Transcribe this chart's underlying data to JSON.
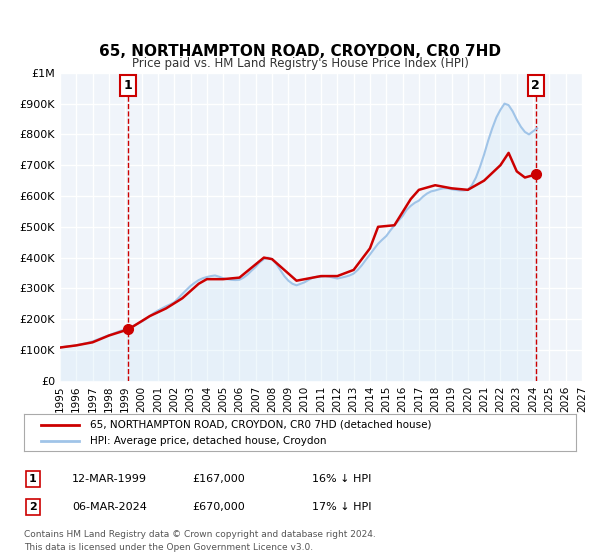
{
  "title": "65, NORTHAMPTON ROAD, CROYDON, CR0 7HD",
  "subtitle": "Price paid vs. HM Land Registry's House Price Index (HPI)",
  "xlabel": "",
  "ylabel": "",
  "xlim": [
    1995,
    2027
  ],
  "ylim": [
    0,
    1000000
  ],
  "yticks": [
    0,
    100000,
    200000,
    300000,
    400000,
    500000,
    600000,
    700000,
    800000,
    900000,
    1000000
  ],
  "ytick_labels": [
    "£0",
    "£100K",
    "£200K",
    "£300K",
    "£400K",
    "£500K",
    "£600K",
    "£700K",
    "£800K",
    "£900K",
    "£1M"
  ],
  "xticks": [
    1995,
    1996,
    1997,
    1998,
    1999,
    2000,
    2001,
    2002,
    2003,
    2004,
    2005,
    2006,
    2007,
    2008,
    2009,
    2010,
    2011,
    2012,
    2013,
    2014,
    2015,
    2016,
    2017,
    2018,
    2019,
    2020,
    2021,
    2022,
    2023,
    2024,
    2025,
    2026,
    2027
  ],
  "sale1_x": 1999.19,
  "sale1_y": 167000,
  "sale2_x": 2024.17,
  "sale2_y": 670000,
  "sale1_label": "1",
  "sale2_label": "2",
  "legend_line1": "65, NORTHAMPTON ROAD, CROYDON, CR0 7HD (detached house)",
  "legend_line2": "HPI: Average price, detached house, Croydon",
  "table_row1": [
    "1",
    "12-MAR-1999",
    "£167,000",
    "16% ↓ HPI"
  ],
  "table_row2": [
    "2",
    "06-MAR-2024",
    "£670,000",
    "17% ↓ HPI"
  ],
  "footer1": "Contains HM Land Registry data © Crown copyright and database right 2024.",
  "footer2": "This data is licensed under the Open Government Licence v3.0.",
  "price_line_color": "#cc0000",
  "hpi_line_color": "#a0c4e8",
  "hpi_fill_color": "#d0e8f8",
  "background_color": "#f0f4fa",
  "plot_bg_color": "#f0f4fa",
  "grid_color": "#ffffff",
  "vline_color": "#cc0000",
  "hpi_data_x": [
    1995.0,
    1995.25,
    1995.5,
    1995.75,
    1996.0,
    1996.25,
    1996.5,
    1996.75,
    1997.0,
    1997.25,
    1997.5,
    1997.75,
    1998.0,
    1998.25,
    1998.5,
    1998.75,
    1999.0,
    1999.25,
    1999.5,
    1999.75,
    2000.0,
    2000.25,
    2000.5,
    2000.75,
    2001.0,
    2001.25,
    2001.5,
    2001.75,
    2002.0,
    2002.25,
    2002.5,
    2002.75,
    2003.0,
    2003.25,
    2003.5,
    2003.75,
    2004.0,
    2004.25,
    2004.5,
    2004.75,
    2005.0,
    2005.25,
    2005.5,
    2005.75,
    2006.0,
    2006.25,
    2006.5,
    2006.75,
    2007.0,
    2007.25,
    2007.5,
    2007.75,
    2008.0,
    2008.25,
    2008.5,
    2008.75,
    2009.0,
    2009.25,
    2009.5,
    2009.75,
    2010.0,
    2010.25,
    2010.5,
    2010.75,
    2011.0,
    2011.25,
    2011.5,
    2011.75,
    2012.0,
    2012.25,
    2012.5,
    2012.75,
    2013.0,
    2013.25,
    2013.5,
    2013.75,
    2014.0,
    2014.25,
    2014.5,
    2014.75,
    2015.0,
    2015.25,
    2015.5,
    2015.75,
    2016.0,
    2016.25,
    2016.5,
    2016.75,
    2017.0,
    2017.25,
    2017.5,
    2017.75,
    2018.0,
    2018.25,
    2018.5,
    2018.75,
    2019.0,
    2019.25,
    2019.5,
    2019.75,
    2020.0,
    2020.25,
    2020.5,
    2020.75,
    2021.0,
    2021.25,
    2021.5,
    2021.75,
    2022.0,
    2022.25,
    2022.5,
    2022.75,
    2023.0,
    2023.25,
    2023.5,
    2023.75,
    2024.0,
    2024.25
  ],
  "hpi_data_y": [
    108000,
    110000,
    112000,
    113000,
    115000,
    118000,
    121000,
    124000,
    128000,
    133000,
    138000,
    143000,
    148000,
    153000,
    158000,
    163000,
    167000,
    172000,
    178000,
    185000,
    192000,
    200000,
    210000,
    220000,
    228000,
    235000,
    242000,
    248000,
    255000,
    268000,
    282000,
    295000,
    308000,
    318000,
    327000,
    333000,
    337000,
    340000,
    342000,
    338000,
    333000,
    330000,
    328000,
    327000,
    328000,
    335000,
    345000,
    358000,
    370000,
    385000,
    395000,
    400000,
    395000,
    380000,
    360000,
    340000,
    325000,
    315000,
    310000,
    315000,
    320000,
    328000,
    335000,
    338000,
    338000,
    340000,
    338000,
    335000,
    332000,
    335000,
    338000,
    342000,
    348000,
    360000,
    375000,
    393000,
    410000,
    428000,
    445000,
    458000,
    470000,
    488000,
    505000,
    520000,
    535000,
    555000,
    568000,
    578000,
    585000,
    598000,
    608000,
    615000,
    618000,
    622000,
    625000,
    625000,
    622000,
    620000,
    618000,
    618000,
    620000,
    635000,
    660000,
    695000,
    735000,
    780000,
    820000,
    855000,
    880000,
    900000,
    895000,
    875000,
    848000,
    825000,
    808000,
    800000,
    810000,
    820000
  ],
  "price_data_x": [
    1995.0,
    1996.0,
    1997.0,
    1998.0,
    1999.19,
    2000.5,
    2001.5,
    2002.5,
    2003.5,
    2004.0,
    2005.0,
    2006.0,
    2007.5,
    2008.0,
    2009.5,
    2010.5,
    2011.0,
    2012.0,
    2013.0,
    2014.0,
    2014.5,
    2015.5,
    2016.5,
    2017.0,
    2018.0,
    2019.0,
    2020.0,
    2021.0,
    2022.0,
    2022.5,
    2023.0,
    2023.5,
    2024.17
  ],
  "price_data_y": [
    108000,
    115000,
    125000,
    147000,
    167000,
    210000,
    235000,
    268000,
    315000,
    330000,
    330000,
    335000,
    400000,
    395000,
    325000,
    335000,
    340000,
    340000,
    360000,
    430000,
    500000,
    505000,
    590000,
    620000,
    635000,
    625000,
    620000,
    650000,
    700000,
    740000,
    680000,
    660000,
    670000
  ]
}
